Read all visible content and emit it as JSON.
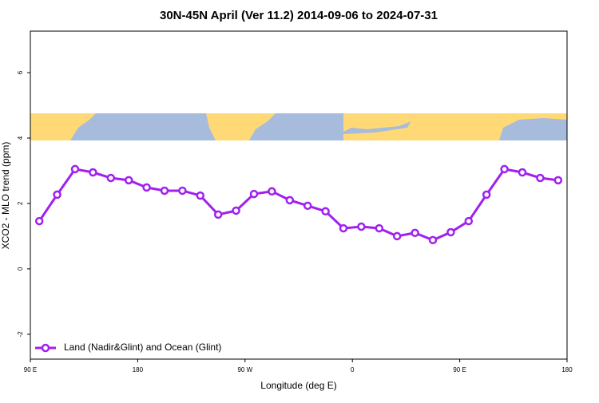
{
  "chart_data": {
    "type": "line",
    "title": "30N-45N April (Ver 11.2)   2014-09-06 to 2024-07-31",
    "x_label": "Longitude (deg E)",
    "y_label": "XCO2 - MLO trend (ppm)",
    "x": [
      97.5,
      112.5,
      127.5,
      142.5,
      157.5,
      172.5,
      187.5,
      202.5,
      217.5,
      232.5,
      247.5,
      262.5,
      277.5,
      292.5,
      307.5,
      322.5,
      337.5,
      352.5,
      367.5,
      382.5,
      397.5,
      412.5,
      427.5,
      442.5,
      457.5,
      472.5,
      487.5,
      502.5,
      517.5,
      532.5
    ],
    "series": [
      {
        "name": "Land (Nadir&Glint) and Ocean (Glint)",
        "color": "#a020f0",
        "values": [
          1.46,
          2.27,
          3.05,
          2.95,
          2.78,
          2.71,
          2.49,
          2.39,
          2.39,
          2.24,
          1.66,
          1.78,
          2.29,
          2.37,
          2.1,
          1.93,
          1.76,
          1.24,
          1.29,
          1.24,
          1.0,
          1.1,
          0.88,
          1.12,
          1.46,
          2.27,
          3.05,
          2.95,
          2.78,
          2.71
        ]
      }
    ],
    "xlim": [
      90,
      540
    ],
    "xticks": [
      {
        "value": 90,
        "label": "90 E"
      },
      {
        "value": 180,
        "label": "180"
      },
      {
        "value": 270,
        "label": "90 W"
      },
      {
        "value": 360,
        "label": "0"
      },
      {
        "value": 450,
        "label": "90 E"
      },
      {
        "value": 540,
        "label": "180"
      }
    ],
    "ylim": [
      -2.76,
      7.27
    ],
    "yticks": [
      -2,
      0,
      2,
      4,
      6
    ],
    "legend": "lower left"
  }
}
